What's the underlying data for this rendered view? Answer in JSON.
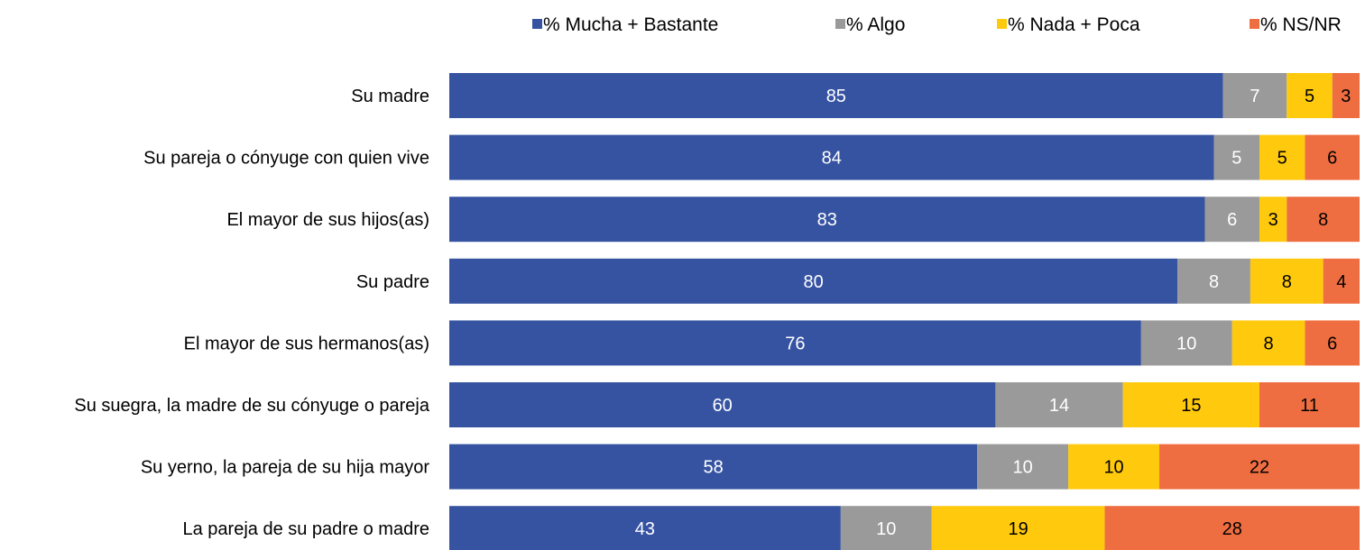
{
  "chart_data": {
    "type": "bar",
    "orientation": "horizontal",
    "stacked": true,
    "title": "",
    "xlabel": "",
    "ylabel": "",
    "xlim": [
      0,
      100
    ],
    "grid": false,
    "legend_position": "top-right",
    "categories": [
      "Su madre",
      "Su pareja o cónyuge con quien vive",
      "El mayor de sus hijos(as)",
      "Su padre",
      "El mayor de sus hermanos(as)",
      "Su suegra, la madre de su cónyuge o pareja",
      "Su yerno, la pareja de su hija mayor",
      "La pareja de su padre o madre"
    ],
    "series": [
      {
        "name": "% Mucha + Bastante",
        "color": "#3653a2",
        "label_color": "#ffffff",
        "values": [
          85,
          84,
          83,
          80,
          76,
          60,
          58,
          43
        ]
      },
      {
        "name": "% Algo",
        "color": "#9a9a9a",
        "label_color": "#ffffff",
        "values": [
          7,
          5,
          6,
          8,
          10,
          14,
          10,
          10
        ]
      },
      {
        "name": "% Nada + Poca",
        "color": "#ffc90e",
        "label_color": "#000000",
        "values": [
          5,
          5,
          3,
          8,
          8,
          15,
          10,
          19
        ]
      },
      {
        "name": "% NS/NR",
        "color": "#ef6e41",
        "label_color": "#000000",
        "values": [
          3,
          6,
          8,
          4,
          6,
          11,
          22,
          28
        ]
      }
    ]
  }
}
